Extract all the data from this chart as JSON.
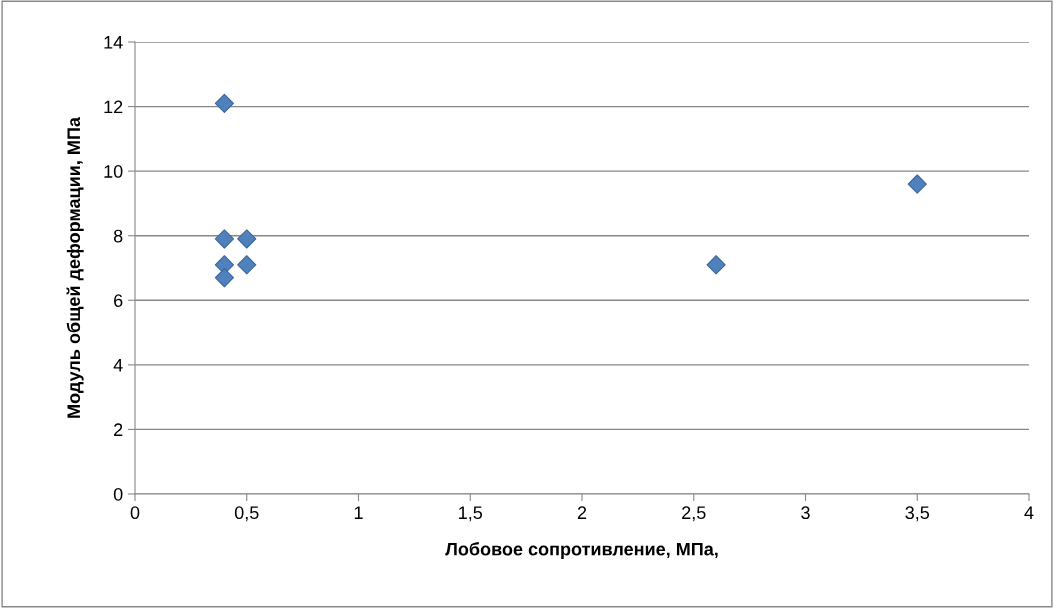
{
  "chart_data": {
    "type": "scatter",
    "xlabel": "Лобовое сопротивление, МПа,",
    "ylabel": "Модуль общей деформации, МПа",
    "x": [
      0.4,
      0.4,
      0.5,
      0.4,
      0.5,
      0.4,
      2.6,
      3.5
    ],
    "series": [
      {
        "color": "#4f81bd",
        "values": [
          12.1,
          7.9,
          7.9,
          7.1,
          7.1,
          6.7,
          7.1,
          9.6
        ]
      }
    ],
    "marker": "diamond",
    "grid": "y",
    "legend": false,
    "xlim": [
      0,
      4
    ],
    "xticks": [
      0,
      {
        "value": 0.5,
        "label": "0,5"
      },
      1,
      {
        "value": 1.5,
        "label": "1,5"
      },
      2,
      {
        "value": 2.5,
        "label": "2,5"
      },
      3,
      {
        "value": 3.5,
        "label": "3,5"
      },
      4
    ],
    "ylim": [
      0,
      14
    ],
    "yticks": [
      0,
      2,
      4,
      6,
      8,
      10,
      12,
      14
    ]
  }
}
